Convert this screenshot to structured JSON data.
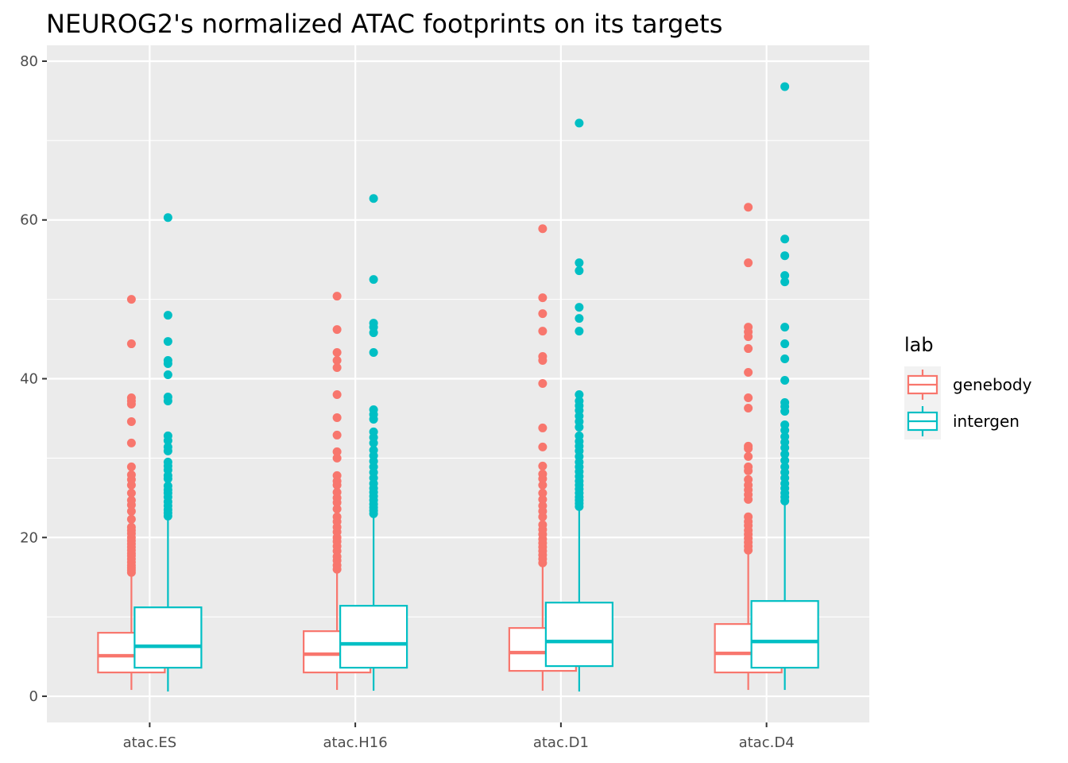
{
  "chart_data": {
    "type": "boxplot",
    "title": "NEUROG2's normalized ATAC footprints on its targets",
    "xlabel": "",
    "ylabel": "",
    "ylim": [
      -3.3,
      82
    ],
    "y_ticks": [
      0,
      20,
      40,
      60,
      80
    ],
    "categories": [
      "atac.ES",
      "atac.H16",
      "atac.D1",
      "atac.D4"
    ],
    "grid": true,
    "panel_background": "#ebebeb",
    "legend": {
      "title": "lab",
      "position": "right"
    },
    "series": [
      {
        "name": "genebody",
        "color": "#F8766D",
        "boxes": [
          {
            "category": "atac.ES",
            "whisker_low": 0.8,
            "q1": 3.0,
            "median": 5.1,
            "q3": 8.0,
            "whisker_high": 15.5,
            "outliers": [
              15.6,
              15.9,
              16.2,
              16.5,
              16.9,
              17.3,
              17.7,
              18.0,
              18.4,
              18.8,
              19.2,
              19.6,
              20.0,
              20.5,
              20.9,
              21.3,
              22.3,
              23.3,
              24.1,
              24.7,
              25.6,
              26.6,
              27.3,
              27.9,
              28.9,
              31.9,
              34.6,
              36.8,
              37.2,
              37.6,
              44.4,
              50.0
            ]
          },
          {
            "category": "atac.H16",
            "whisker_low": 0.8,
            "q1": 3.0,
            "median": 5.3,
            "q3": 8.2,
            "whisker_high": 15.8,
            "outliers": [
              16.0,
              16.5,
              17.1,
              17.6,
              18.3,
              18.9,
              19.5,
              20.0,
              20.7,
              21.3,
              22.0,
              22.6,
              23.6,
              24.4,
              25.0,
              25.7,
              26.6,
              27.1,
              27.8,
              30.0,
              30.8,
              32.9,
              35.1,
              38.0,
              41.4,
              42.3,
              43.3,
              46.2,
              50.4
            ]
          },
          {
            "category": "atac.D1",
            "whisker_low": 0.7,
            "q1": 3.2,
            "median": 5.5,
            "q3": 8.6,
            "whisker_high": 16.6,
            "outliers": [
              16.8,
              17.3,
              17.8,
              18.3,
              18.8,
              19.3,
              19.8,
              20.4,
              21.0,
              21.6,
              22.6,
              23.3,
              24.0,
              24.8,
              25.6,
              26.6,
              27.4,
              28.0,
              29.0,
              31.4,
              33.8,
              39.4,
              42.3,
              42.8,
              46.0,
              48.2,
              50.2,
              58.9
            ]
          },
          {
            "category": "atac.D4",
            "whisker_low": 0.8,
            "q1": 3.0,
            "median": 5.4,
            "q3": 9.1,
            "whisker_high": 18.2,
            "outliers": [
              18.4,
              18.9,
              19.4,
              19.9,
              20.4,
              20.9,
              21.5,
              22.0,
              22.6,
              24.8,
              25.4,
              26.0,
              26.6,
              27.3,
              28.4,
              28.9,
              30.2,
              31.2,
              31.5,
              36.3,
              37.6,
              40.8,
              43.8,
              45.3,
              45.9,
              46.5,
              54.6,
              61.6
            ]
          }
        ]
      },
      {
        "name": "intergen",
        "color": "#00BFC4",
        "boxes": [
          {
            "category": "atac.ES",
            "whisker_low": 0.6,
            "q1": 3.6,
            "median": 6.3,
            "q3": 11.2,
            "whisker_high": 22.6,
            "outliers": [
              22.7,
              23.1,
              23.5,
              24.0,
              24.5,
              25.1,
              25.6,
              26.0,
              26.5,
              27.4,
              27.8,
              28.5,
              29.0,
              29.5,
              30.9,
              31.4,
              32.2,
              32.8,
              37.2,
              37.7,
              40.5,
              41.9,
              42.3,
              44.7,
              48.0,
              60.3
            ]
          },
          {
            "category": "atac.H16",
            "whisker_low": 0.7,
            "q1": 3.6,
            "median": 6.6,
            "q3": 11.4,
            "whisker_high": 22.9,
            "outliers": [
              23.0,
              23.4,
              23.8,
              24.2,
              24.7,
              25.2,
              25.7,
              26.2,
              26.8,
              27.5,
              28.2,
              28.9,
              29.6,
              30.3,
              31.0,
              31.9,
              32.6,
              33.3,
              34.9,
              35.5,
              36.1,
              43.3,
              45.8,
              46.5,
              47.0,
              52.5,
              62.7
            ]
          },
          {
            "category": "atac.D1",
            "whisker_low": 0.6,
            "q1": 3.8,
            "median": 6.9,
            "q3": 11.8,
            "whisker_high": 23.8,
            "outliers": [
              23.9,
              24.3,
              24.7,
              25.1,
              25.6,
              26.1,
              26.6,
              27.1,
              27.7,
              28.3,
              28.9,
              29.5,
              30.2,
              30.9,
              31.5,
              32.1,
              32.8,
              33.9,
              34.6,
              35.3,
              36.0,
              36.6,
              37.2,
              38.0,
              46.0,
              47.6,
              49.0,
              53.6,
              54.6,
              72.2
            ]
          },
          {
            "category": "atac.D4",
            "whisker_low": 0.8,
            "q1": 3.6,
            "median": 6.9,
            "q3": 12.0,
            "whisker_high": 24.5,
            "outliers": [
              24.6,
              25.1,
              25.6,
              26.2,
              26.8,
              27.5,
              28.2,
              28.9,
              29.7,
              30.5,
              31.3,
              32.0,
              32.7,
              33.5,
              34.2,
              35.9,
              36.5,
              37.0,
              39.8,
              42.5,
              44.4,
              46.5,
              52.2,
              53.0,
              55.5,
              57.6,
              76.8
            ]
          }
        ]
      }
    ]
  }
}
